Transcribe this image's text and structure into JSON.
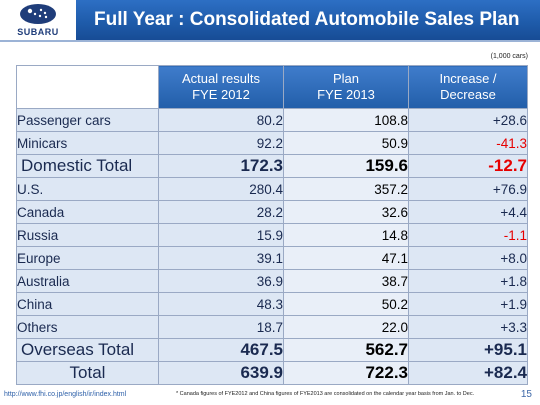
{
  "header": {
    "logo_text": "SUBARU",
    "title": "Full Year : Consolidated Automobile Sales Plan"
  },
  "units": "(1,000 cars)",
  "table": {
    "columns": [
      {
        "line1": "Actual results",
        "line2": "FYE 2012"
      },
      {
        "line1": "Plan",
        "line2": "FYE 2013"
      },
      {
        "line1": "Increase /",
        "line2": "Decrease"
      }
    ],
    "rows": [
      {
        "label": "Passenger cars",
        "actual": "80.2",
        "plan": "108.8",
        "change": "+28.6"
      },
      {
        "label": "Minicars",
        "actual": "92.2",
        "plan": "50.9",
        "change": "-41.3"
      },
      {
        "label": "Domestic Total",
        "actual": "172.3",
        "plan": "159.6",
        "change": "-12.7"
      },
      {
        "label": "U.S.",
        "actual": "280.4",
        "plan": "357.2",
        "change": "+76.9"
      },
      {
        "label": "Canada",
        "actual": "28.2",
        "plan": "32.6",
        "change": "+4.4"
      },
      {
        "label": "Russia",
        "actual": "15.9",
        "plan": "14.8",
        "change": "-1.1"
      },
      {
        "label": "Europe",
        "actual": "39.1",
        "plan": "47.1",
        "change": "+8.0"
      },
      {
        "label": "Australia",
        "actual": "36.9",
        "plan": "38.7",
        "change": "+1.8"
      },
      {
        "label": "China",
        "actual": "48.3",
        "plan": "50.2",
        "change": "+1.9"
      },
      {
        "label": "Others",
        "actual": "18.7",
        "plan": "22.0",
        "change": "+3.3"
      },
      {
        "label": "Overseas Total",
        "actual": "467.5",
        "plan": "562.7",
        "change": "+95.1"
      },
      {
        "label": "Total",
        "actual": "639.9",
        "plan": "722.3",
        "change": "+82.4"
      }
    ]
  },
  "footer": {
    "url": "http://www.fhi.co.jp/english/ir/index.html",
    "note": "* Canada figures of FYE2012 and China figures of FYE2013 are consolidated on the calendar year basis from Jan. to Dec.",
    "page": "15"
  },
  "colors": {
    "title_bar": "#1f5cab",
    "cell_bg": "#dde7f4",
    "negative": "#e60000",
    "logo_blue": "#1f3d7a"
  }
}
